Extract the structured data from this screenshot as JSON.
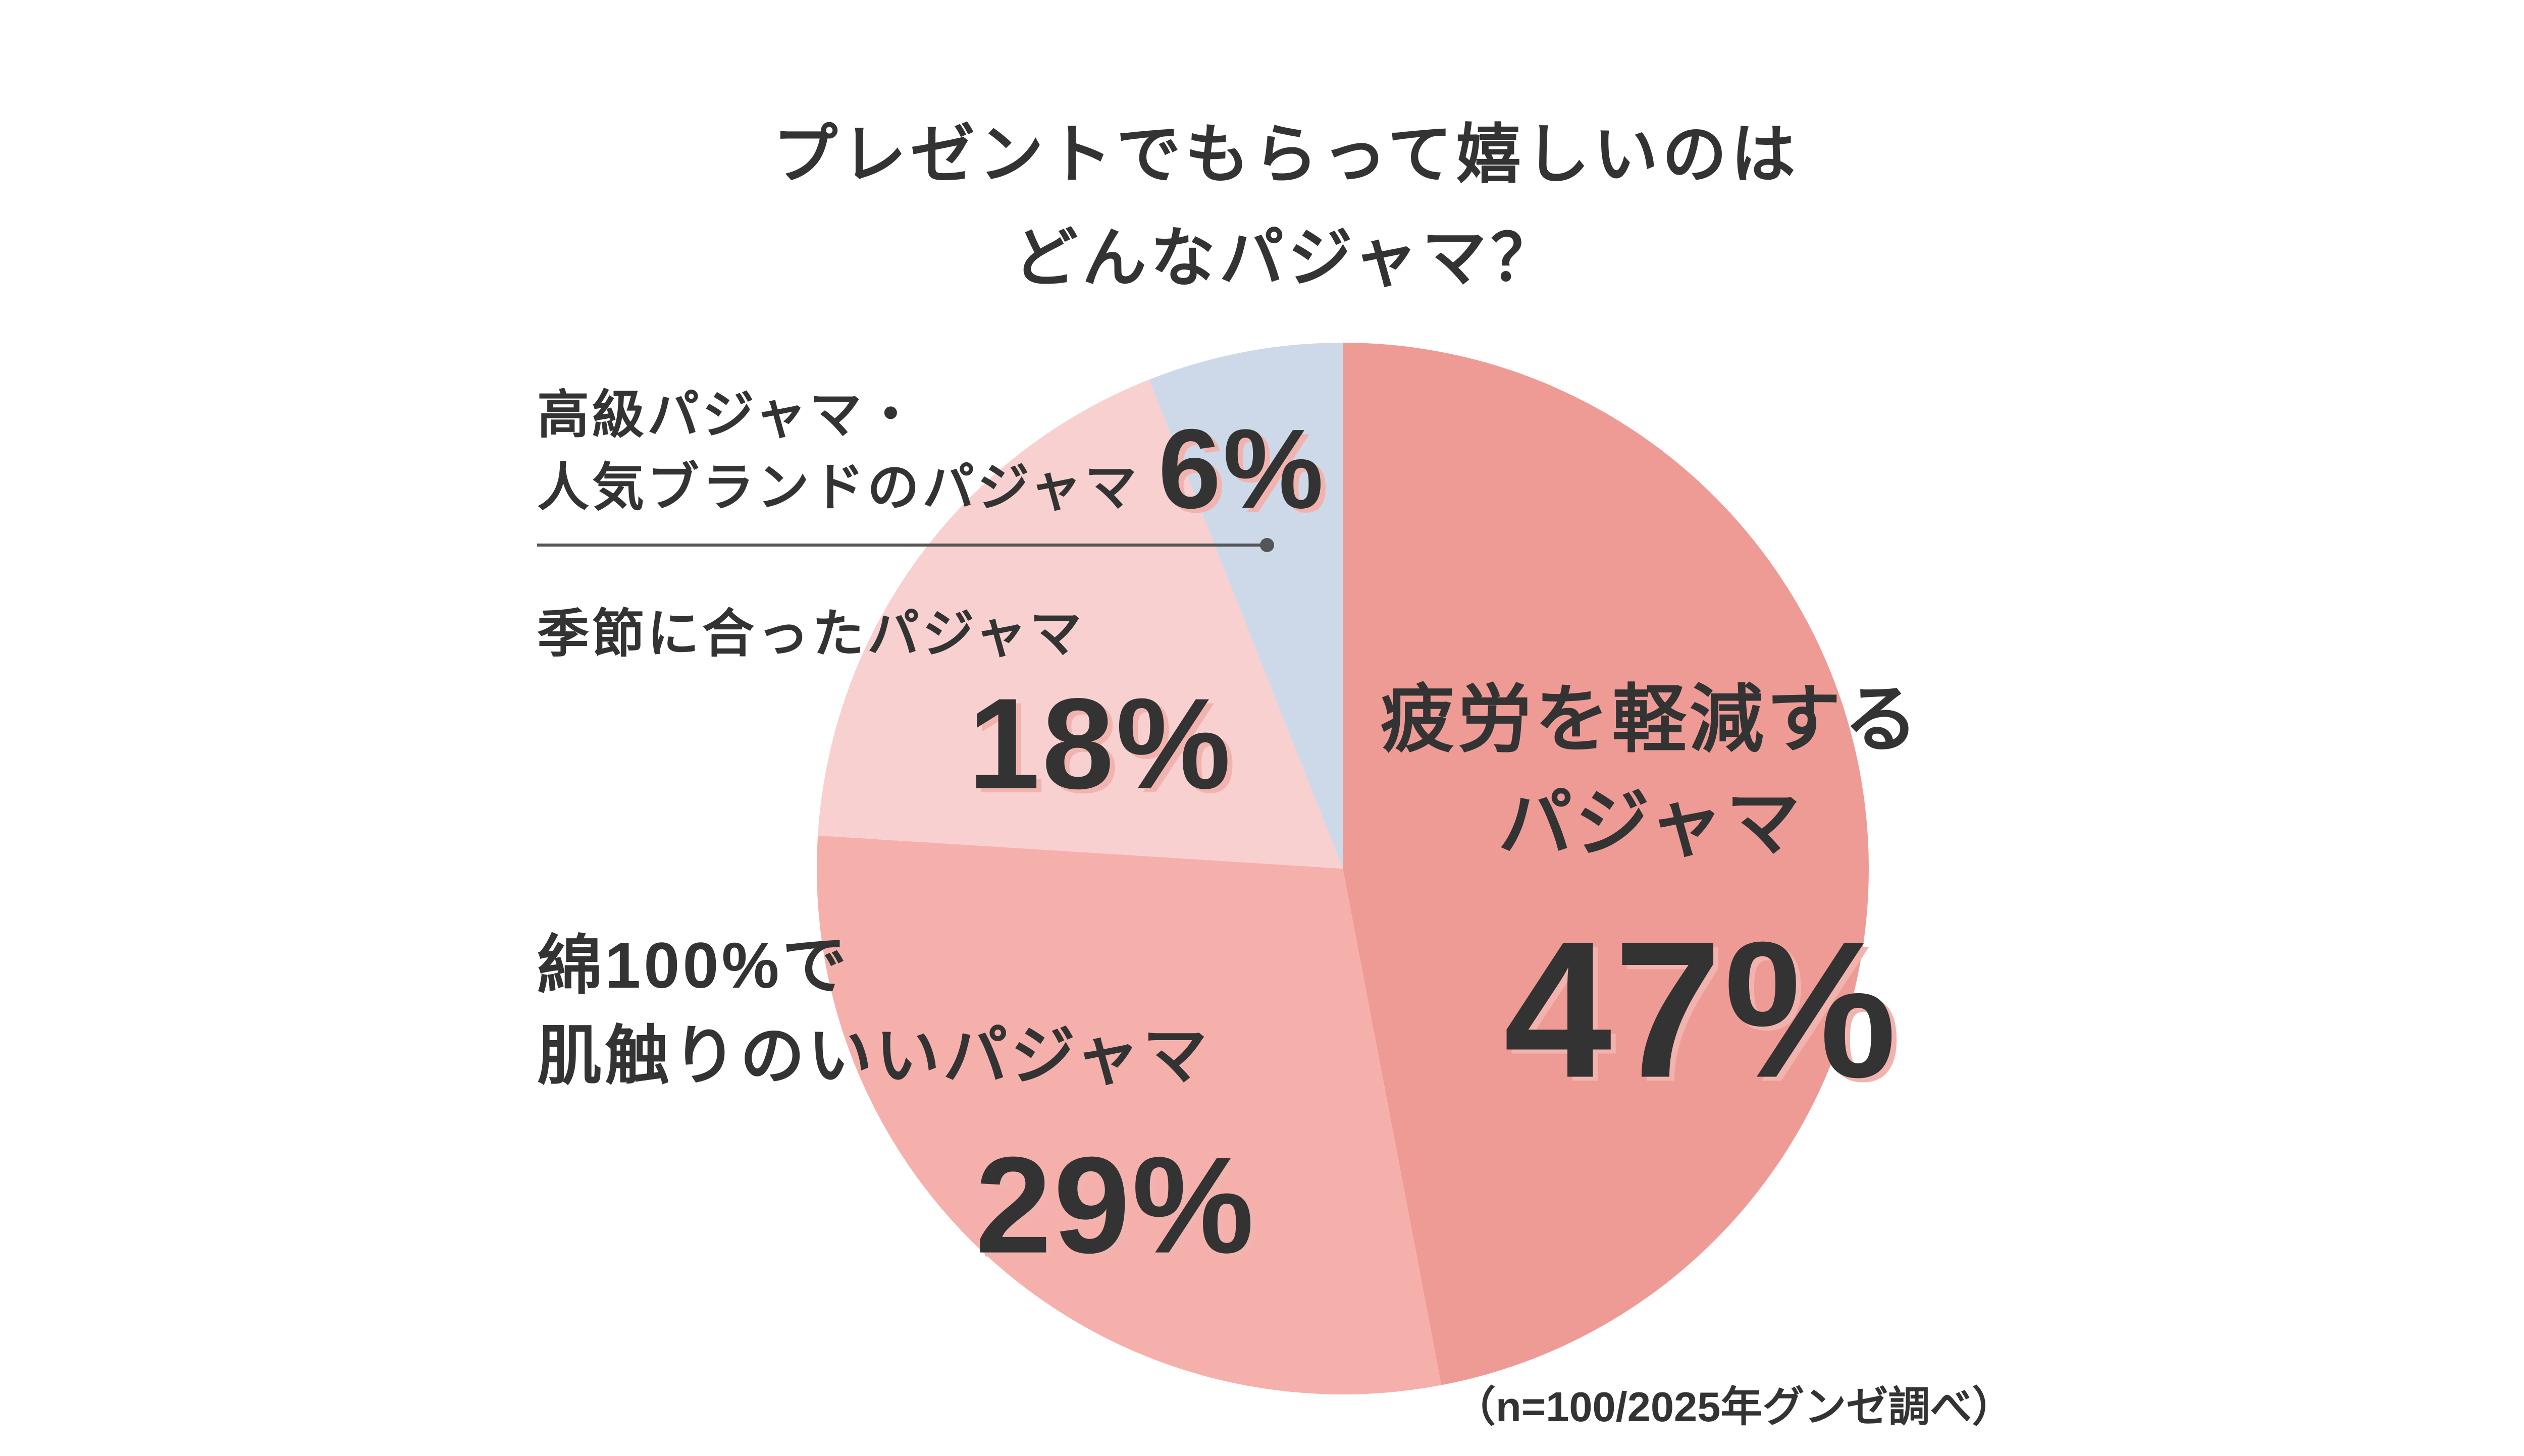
{
  "chart_data": {
    "type": "pie",
    "title": "プレゼントでもらって嬉しいのは\nどんなパジャマ？",
    "categories": [
      "疲労を軽減する\nパジャマ",
      "綿100%で\n肌触りのいいパジャマ",
      "季節に合ったパジャマ",
      "高級パジャマ・\n人気ブランドのパジャマ"
    ],
    "values": [
      47,
      29,
      18,
      6
    ],
    "value_labels": [
      "47%",
      "29%",
      "18%",
      "6%"
    ],
    "colors": [
      "#ee9b96",
      "#f6b0ab",
      "#f7d0cf",
      "#cdd9e8"
    ],
    "note": "（n=100/2025年グンゼ調べ）"
  }
}
